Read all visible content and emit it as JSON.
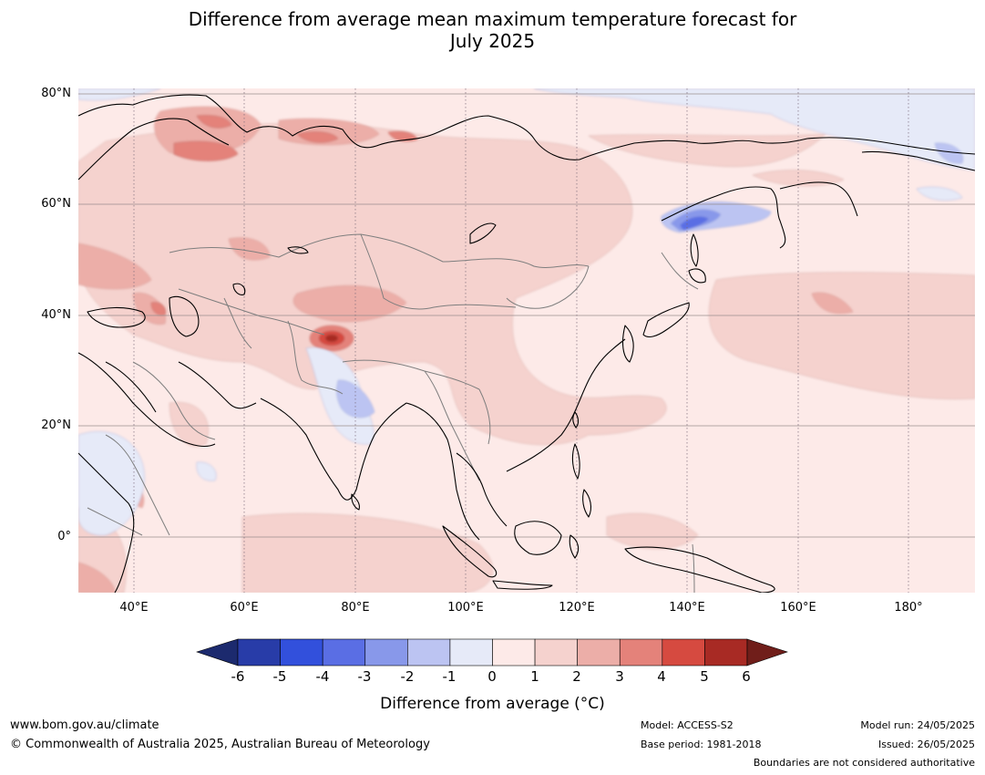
{
  "title": {
    "line1": "Difference from average mean maximum temperature forecast for",
    "line2": "July 2025"
  },
  "map": {
    "projection": "equirectangular",
    "lon_range": [
      30,
      192
    ],
    "lat_range": [
      -10,
      81
    ],
    "lat_labels": [
      "80°N",
      "60°N",
      "40°N",
      "20°N",
      "0°"
    ],
    "lon_labels": [
      "40°E",
      "60°E",
      "80°E",
      "100°E",
      "120°E",
      "140°E",
      "160°E",
      "180°"
    ],
    "anomaly_regions": [
      {
        "name": "Tibet / Western China hot spot",
        "anomaly_c": "4 to 6"
      },
      {
        "name": "Northern Scandinavia / Kola",
        "anomaly_c": "2 to 4"
      },
      {
        "name": "Caspian / Caucasus",
        "anomaly_c": "2 to 3"
      },
      {
        "name": "Central Asia",
        "anomaly_c": "1 to 2"
      },
      {
        "name": "Mongolia / Northern China",
        "anomaly_c": "1 to 2"
      },
      {
        "name": "North Pacific near 40°N 165°E",
        "anomaly_c": "1 to 3"
      },
      {
        "name": "Sea of Okhotsk / Lower Amur",
        "anomaly_c": "-4 to -1"
      },
      {
        "name": "Central India",
        "anomaly_c": "-2 to -1"
      },
      {
        "name": "Horn of Africa / East Africa",
        "anomaly_c": "-1 to 0"
      },
      {
        "name": "Arctic Ocean",
        "anomaly_c": "-1 to 0"
      },
      {
        "name": "Chukotka",
        "anomaly_c": "-2 to -1"
      }
    ]
  },
  "legend": {
    "ticks": [
      "-6",
      "-5",
      "-4",
      "-3",
      "-2",
      "-1",
      "0",
      "1",
      "2",
      "3",
      "4",
      "5",
      "6"
    ],
    "colors": {
      "below": "#1c2a6e",
      "bins": [
        "#283ca8",
        "#3250dc",
        "#5a6ee4",
        "#8898ea",
        "#bcc4f2",
        "#e6eaf8",
        "#fdeae8",
        "#f5d2ce",
        "#ecaea8",
        "#e4827a",
        "#d64a40",
        "#a82a24"
      ],
      "above": "#701e1a"
    },
    "label": "Difference from average (°C)"
  },
  "footer": {
    "website": "www.bom.gov.au/climate",
    "copyright": "© Commonwealth of Australia 2025, Australian Bureau of Meteorology",
    "model": "Model: ACCESS-S2",
    "base_period": "Base period: 1981-2018",
    "model_run": "Model run: 24/05/2025",
    "issued": "Issued: 26/05/2025",
    "disclaimer": "Boundaries are not considered authoritative"
  }
}
